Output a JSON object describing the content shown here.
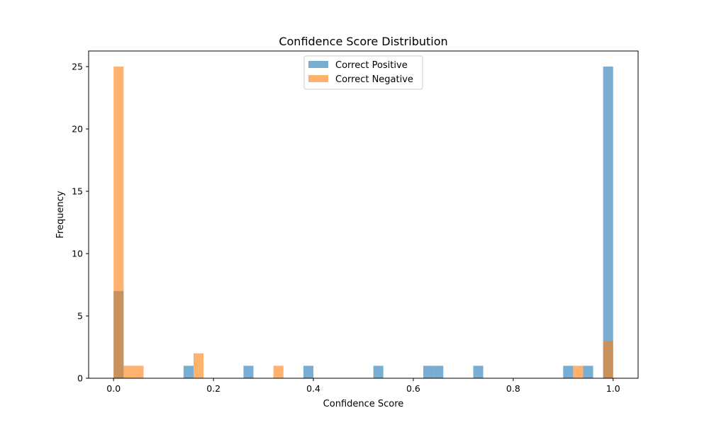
{
  "chart_data": {
    "type": "bar",
    "title": "Confidence Score Distribution",
    "xlabel": "Confidence Score",
    "ylabel": "Frequency",
    "xlim": [
      -0.05,
      1.05
    ],
    "ylim": [
      0,
      26.25
    ],
    "x_ticks": [
      0.0,
      0.2,
      0.4,
      0.6,
      0.8,
      1.0
    ],
    "x_tick_labels": [
      "0.0",
      "0.2",
      "0.4",
      "0.6",
      "0.8",
      "1.0"
    ],
    "y_ticks": [
      0,
      5,
      10,
      15,
      20,
      25
    ],
    "y_tick_labels": [
      "0",
      "5",
      "10",
      "15",
      "20",
      "25"
    ],
    "grid": false,
    "legend": "top-center",
    "bin_width": 0.02,
    "series": [
      {
        "name": "Correct Positive",
        "color": "#1f77b4",
        "opacity": 0.6,
        "bins": [
          {
            "x": 0.0,
            "value": 7
          },
          {
            "x": 0.14,
            "value": 1
          },
          {
            "x": 0.26,
            "value": 1
          },
          {
            "x": 0.38,
            "value": 1
          },
          {
            "x": 0.52,
            "value": 1
          },
          {
            "x": 0.62,
            "value": 1
          },
          {
            "x": 0.64,
            "value": 1
          },
          {
            "x": 0.72,
            "value": 1
          },
          {
            "x": 0.9,
            "value": 1
          },
          {
            "x": 0.94,
            "value": 1
          },
          {
            "x": 0.98,
            "value": 25
          }
        ]
      },
      {
        "name": "Correct Negative",
        "color": "#ff7f0e",
        "opacity": 0.6,
        "bins": [
          {
            "x": 0.0,
            "value": 25
          },
          {
            "x": 0.02,
            "value": 1
          },
          {
            "x": 0.04,
            "value": 1
          },
          {
            "x": 0.16,
            "value": 2
          },
          {
            "x": 0.32,
            "value": 1
          },
          {
            "x": 0.92,
            "value": 1
          },
          {
            "x": 0.98,
            "value": 3
          }
        ]
      }
    ]
  }
}
